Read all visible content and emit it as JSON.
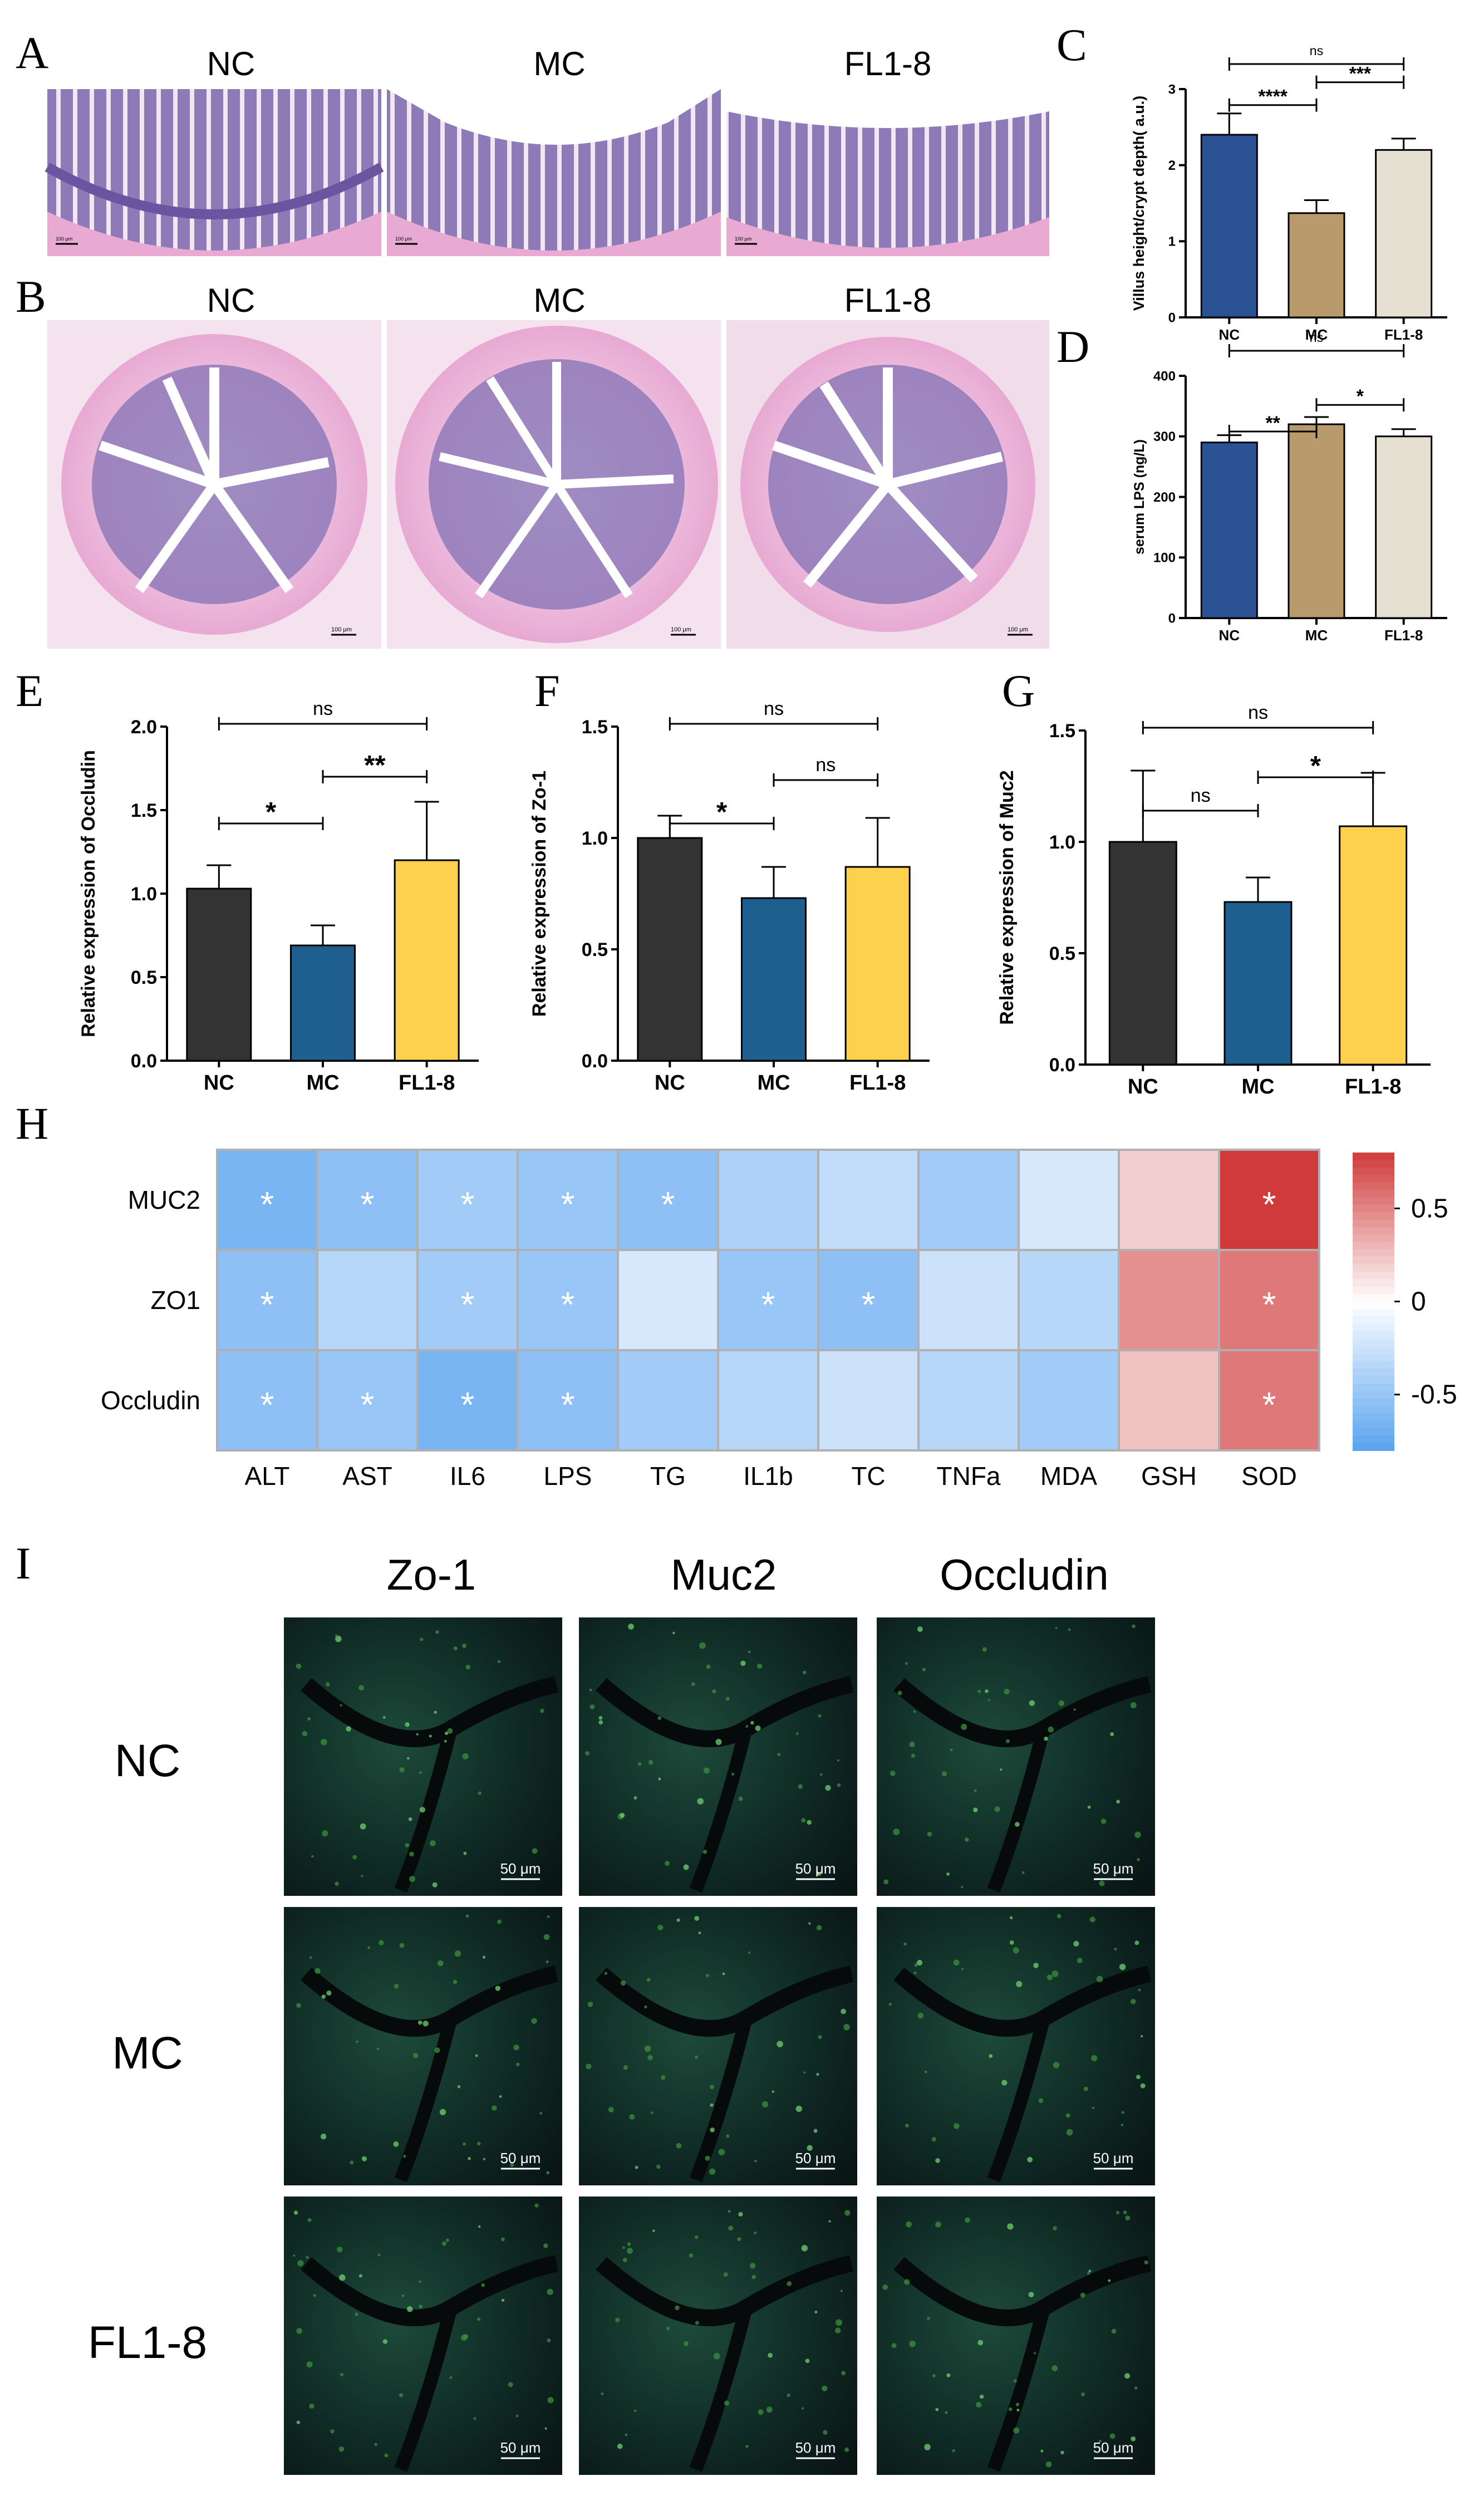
{
  "panel_letters": [
    "A",
    "B",
    "C",
    "D",
    "E",
    "F",
    "G",
    "H",
    "I"
  ],
  "histology": {
    "groups": [
      "NC",
      "MC",
      "FL1-8"
    ],
    "scalebar_A": "100 μm",
    "scalebar_B": "100 μm"
  },
  "colors": {
    "nc_dark": "#2a5294",
    "mc_tan": "#b89a6c",
    "fl_light": "#e6e0d3",
    "nc_black": "#333333",
    "mc_blue": "#1f5f8f",
    "fl_yellow": "#fdd04d",
    "he_pink": "#e8a9d2",
    "he_purple": "#8f7ab8",
    "if_bg": "#0e1a14",
    "if_green": "#3c8f3c",
    "heat_neg": "#5aa3f0",
    "heat_pos": "#d03a3a"
  },
  "chart_data": [
    {
      "id": "C",
      "type": "bar",
      "categories": [
        "NC",
        "MC",
        "FL1-8"
      ],
      "values": [
        2.4,
        1.37,
        2.2
      ],
      "errors": [
        0.28,
        0.17,
        0.15
      ],
      "ylabel": "Villus height/crypt depth( a.u.)",
      "ylim": [
        0,
        3
      ],
      "yticks": [
        "0",
        "1",
        "2",
        "3"
      ],
      "significance": [
        {
          "from": 0,
          "to": 1,
          "label": "****"
        },
        {
          "from": 1,
          "to": 2,
          "label": "***"
        },
        {
          "from": 0,
          "to": 2,
          "label": "ns"
        }
      ]
    },
    {
      "id": "D",
      "type": "bar",
      "categories": [
        "NC",
        "MC",
        "FL1-8"
      ],
      "values": [
        290,
        320,
        300
      ],
      "errors": [
        12,
        12,
        12
      ],
      "ylabel": "serum LPS (ng/L)",
      "ylim": [
        0,
        400
      ],
      "yticks": [
        "0",
        "100",
        "200",
        "300",
        "400"
      ],
      "significance": [
        {
          "from": 0,
          "to": 1,
          "label": "**"
        },
        {
          "from": 1,
          "to": 2,
          "label": "*"
        },
        {
          "from": 0,
          "to": 2,
          "label": "ns"
        }
      ]
    },
    {
      "id": "E",
      "type": "bar",
      "categories": [
        "NC",
        "MC",
        "FL1-8"
      ],
      "values": [
        1.03,
        0.69,
        1.2
      ],
      "errors": [
        0.14,
        0.12,
        0.35
      ],
      "ylabel": "Relative expression of Occludin",
      "ylim": [
        0,
        2
      ],
      "yticks": [
        "0.0",
        "0.5",
        "1.0",
        "1.5",
        "2.0"
      ],
      "significance": [
        {
          "from": 0,
          "to": 1,
          "label": "*"
        },
        {
          "from": 1,
          "to": 2,
          "label": "**"
        },
        {
          "from": 0,
          "to": 2,
          "label": "ns"
        }
      ]
    },
    {
      "id": "F",
      "type": "bar",
      "categories": [
        "NC",
        "MC",
        "FL1-8"
      ],
      "values": [
        1.0,
        0.73,
        0.87
      ],
      "errors": [
        0.1,
        0.14,
        0.22
      ],
      "ylabel": "Relative expression of Zo-1",
      "ylim": [
        0,
        1.5
      ],
      "yticks": [
        "0.0",
        "0.5",
        "1.0",
        "1.5"
      ],
      "significance": [
        {
          "from": 0,
          "to": 1,
          "label": "*"
        },
        {
          "from": 1,
          "to": 2,
          "label": "ns"
        },
        {
          "from": 0,
          "to": 2,
          "label": "ns"
        }
      ]
    },
    {
      "id": "G",
      "type": "bar",
      "categories": [
        "NC",
        "MC",
        "FL1-8"
      ],
      "values": [
        1.0,
        0.73,
        1.07
      ],
      "errors": [
        0.32,
        0.11,
        0.24
      ],
      "ylabel": "Relative expression of Muc2",
      "ylim": [
        0,
        1.5
      ],
      "yticks": [
        "0.0",
        "0.5",
        "1.0",
        "1.5"
      ],
      "significance": [
        {
          "from": 0,
          "to": 1,
          "label": "ns"
        },
        {
          "from": 1,
          "to": 2,
          "label": "*"
        },
        {
          "from": 0,
          "to": 2,
          "label": "ns"
        }
      ]
    },
    {
      "id": "H",
      "type": "heatmap",
      "rows": [
        "MUC2",
        "ZO1",
        "Occludin"
      ],
      "columns": [
        "ALT",
        "AST",
        "IL6",
        "LPS",
        "TG",
        "IL1b",
        "TC",
        "TNFa",
        "MDA",
        "GSH",
        "SOD"
      ],
      "values": [
        [
          -0.65,
          -0.55,
          -0.45,
          -0.5,
          -0.55,
          -0.4,
          -0.3,
          -0.45,
          -0.2,
          0.2,
          0.8
        ],
        [
          -0.55,
          -0.35,
          -0.45,
          -0.5,
          -0.2,
          -0.5,
          -0.55,
          -0.25,
          -0.35,
          0.45,
          0.55
        ],
        [
          -0.55,
          -0.5,
          -0.65,
          -0.55,
          -0.45,
          -0.35,
          -0.25,
          -0.35,
          -0.45,
          0.25,
          0.55
        ]
      ],
      "significant": [
        [
          true,
          true,
          true,
          true,
          true,
          false,
          false,
          false,
          false,
          false,
          true
        ],
        [
          true,
          false,
          true,
          true,
          false,
          true,
          true,
          false,
          false,
          false,
          true
        ],
        [
          true,
          true,
          true,
          true,
          false,
          false,
          false,
          false,
          false,
          false,
          true
        ]
      ],
      "star_label": "*",
      "colorbar_ticks": [
        "0.5",
        "0",
        "-0.5"
      ],
      "colorbar_values": [
        0.5,
        0,
        -0.5
      ],
      "colorbar_range": [
        -0.8,
        0.8
      ]
    }
  ],
  "immuno": {
    "columns": [
      "Zo-1",
      "Muc2",
      "Occludin"
    ],
    "rows": [
      "NC",
      "MC",
      "FL1-8"
    ],
    "scalebar": "50 μm"
  }
}
